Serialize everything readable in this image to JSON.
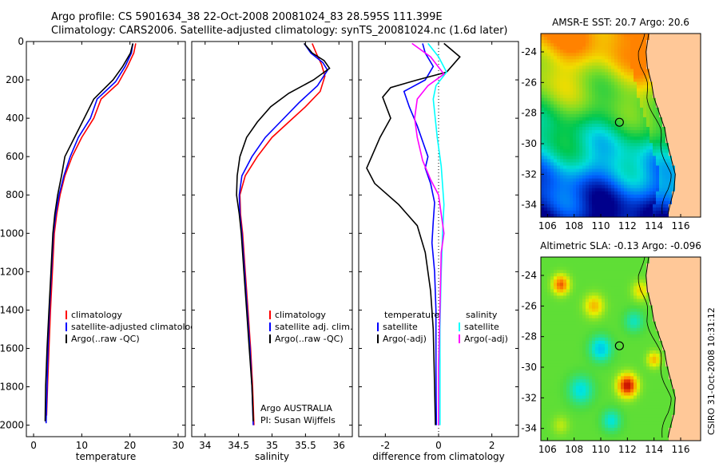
{
  "header": {
    "line1": "Argo profile: CS 5901634_38 22-Oct-2008 20081024_83 28.595S 111.399E",
    "line2": "Climatology: CARS2006. Satellite-adjusted climatology: synTS_20081024.nc (1.6d later)"
  },
  "credits": {
    "owner": "Argo AUSTRALIA",
    "pi": "PI: Susan Wijffels",
    "side": "CSIRO 31-Oct-2008 10:31:12"
  },
  "colors": {
    "clim": "#ff0000",
    "sat": "#0000ff",
    "argo": "#000000",
    "sal_clim": "#ff00ff",
    "sal_sat": "#00ffff",
    "land": "#ffc898"
  },
  "chart_data": [
    {
      "type": "line",
      "title": "",
      "xlabel": "temperature",
      "ylabel": "",
      "xlim": [
        -1.5,
        31.5
      ],
      "ylim": [
        2060,
        0
      ],
      "x_ticks": [
        0,
        10,
        20,
        30
      ],
      "y_ticks": [
        0,
        200,
        400,
        600,
        800,
        1000,
        1200,
        1400,
        1600,
        1800,
        2000
      ],
      "legend": [
        "climatology",
        "satellite-adjusted climatology",
        "Argo(..raw -QC)"
      ],
      "series": [
        {
          "name": "climatology",
          "color": "#ff0000",
          "points": [
            [
              21.2,
              10
            ],
            [
              20.8,
              60
            ],
            [
              19.5,
              130
            ],
            [
              17.5,
              220
            ],
            [
              14.0,
              300
            ],
            [
              12.5,
              400
            ],
            [
              10.0,
              500
            ],
            [
              8.0,
              600
            ],
            [
              6.5,
              700
            ],
            [
              5.5,
              800
            ],
            [
              4.8,
              900
            ],
            [
              4.3,
              1000
            ],
            [
              3.9,
              1200
            ],
            [
              3.5,
              1400
            ],
            [
              3.2,
              1600
            ],
            [
              2.9,
              1800
            ],
            [
              2.7,
              1950
            ]
          ]
        },
        {
          "name": "satellite-adjusted climatology",
          "color": "#0000ff",
          "points": [
            [
              20.6,
              10
            ],
            [
              20.3,
              60
            ],
            [
              19.0,
              130
            ],
            [
              17.0,
              210
            ],
            [
              13.2,
              300
            ],
            [
              11.8,
              400
            ],
            [
              9.3,
              500
            ],
            [
              7.6,
              600
            ],
            [
              6.3,
              700
            ],
            [
              5.3,
              800
            ],
            [
              4.6,
              900
            ],
            [
              4.1,
              1000
            ],
            [
              3.7,
              1200
            ],
            [
              3.3,
              1400
            ],
            [
              3.0,
              1600
            ],
            [
              2.8,
              1800
            ],
            [
              2.6,
              1990
            ]
          ]
        },
        {
          "name": "Argo(..raw -QC)",
          "color": "#000000",
          "points": [
            [
              20.6,
              10
            ],
            [
              20.1,
              60
            ],
            [
              18.5,
              130
            ],
            [
              16.5,
              200
            ],
            [
              12.5,
              300
            ],
            [
              10.5,
              400
            ],
            [
              8.5,
              500
            ],
            [
              6.5,
              600
            ],
            [
              5.8,
              700
            ],
            [
              5.0,
              800
            ],
            [
              4.4,
              900
            ],
            [
              4.0,
              1000
            ],
            [
              3.6,
              1200
            ],
            [
              3.2,
              1400
            ],
            [
              2.8,
              1600
            ],
            [
              2.5,
              1800
            ],
            [
              2.4,
              1980
            ]
          ]
        }
      ]
    },
    {
      "type": "line",
      "title": "",
      "xlabel": "salinity",
      "ylabel": "",
      "xlim": [
        33.8,
        36.2
      ],
      "ylim": [
        2060,
        0
      ],
      "x_ticks": [
        34,
        34.5,
        35,
        35.5,
        36
      ],
      "x_tick_labels": [
        "34",
        "34.5",
        "35",
        "35.5",
        "36"
      ],
      "legend": [
        "climatology",
        "satellite adj. clim.",
        "Argo(..raw -QC)"
      ],
      "series": [
        {
          "name": "climatology",
          "color": "#ff0000",
          "points": [
            [
              35.6,
              10
            ],
            [
              35.66,
              60
            ],
            [
              35.74,
              120
            ],
            [
              35.79,
              180
            ],
            [
              35.72,
              260
            ],
            [
              35.5,
              340
            ],
            [
              35.25,
              420
            ],
            [
              35.0,
              500
            ],
            [
              34.78,
              600
            ],
            [
              34.6,
              700
            ],
            [
              34.52,
              800
            ],
            [
              34.53,
              900
            ],
            [
              34.56,
              1000
            ],
            [
              34.6,
              1200
            ],
            [
              34.64,
              1400
            ],
            [
              34.68,
              1600
            ],
            [
              34.71,
              1800
            ],
            [
              34.73,
              2000
            ]
          ]
        },
        {
          "name": "satellite adj. clim.",
          "color": "#0000ff",
          "points": [
            [
              35.48,
              10
            ],
            [
              35.58,
              60
            ],
            [
              35.76,
              110
            ],
            [
              35.83,
              150
            ],
            [
              35.68,
              230
            ],
            [
              35.4,
              320
            ],
            [
              35.15,
              410
            ],
            [
              34.9,
              500
            ],
            [
              34.7,
              600
            ],
            [
              34.55,
              700
            ],
            [
              34.51,
              800
            ],
            [
              34.52,
              900
            ],
            [
              34.55,
              1000
            ],
            [
              34.59,
              1200
            ],
            [
              34.63,
              1400
            ],
            [
              34.67,
              1600
            ],
            [
              34.7,
              1800
            ],
            [
              34.72,
              2000
            ]
          ]
        },
        {
          "name": "Argo(..raw -QC)",
          "color": "#000000",
          "points": [
            [
              35.48,
              10
            ],
            [
              35.6,
              60
            ],
            [
              35.78,
              100
            ],
            [
              35.86,
              140
            ],
            [
              35.62,
              200
            ],
            [
              35.25,
              270
            ],
            [
              34.98,
              340
            ],
            [
              34.78,
              420
            ],
            [
              34.62,
              500
            ],
            [
              34.52,
              600
            ],
            [
              34.48,
              700
            ],
            [
              34.47,
              800
            ],
            [
              34.51,
              900
            ],
            [
              34.54,
              1000
            ],
            [
              34.58,
              1200
            ],
            [
              34.62,
              1400
            ],
            [
              34.66,
              1600
            ],
            [
              34.7,
              1800
            ],
            [
              34.72,
              1980
            ]
          ]
        }
      ]
    },
    {
      "type": "line",
      "title": "",
      "xlabel": "difference from climatology",
      "ylabel": "",
      "xlim": [
        -3.0,
        3.0
      ],
      "ylim": [
        2060,
        0
      ],
      "x_ticks": [
        -2,
        0,
        2
      ],
      "legend_left_title": "temperature",
      "legend_right_title": "salinity",
      "legend": [
        "satellite",
        "Argo(-adj)",
        "satellite",
        "Argo(-adj)"
      ],
      "series": [
        {
          "name": "temperature satellite",
          "color": "#0000ff",
          "points": [
            [
              -0.6,
              10
            ],
            [
              -0.5,
              60
            ],
            [
              -0.2,
              130
            ],
            [
              -0.5,
              200
            ],
            [
              -1.3,
              260
            ],
            [
              -1.1,
              340
            ],
            [
              -0.8,
              440
            ],
            [
              -0.6,
              520
            ],
            [
              -0.4,
              600
            ],
            [
              -0.5,
              660
            ],
            [
              -0.3,
              740
            ],
            [
              -0.15,
              840
            ],
            [
              -0.2,
              940
            ],
            [
              -0.25,
              1050
            ],
            [
              -0.15,
              1200
            ],
            [
              -0.1,
              1400
            ],
            [
              -0.1,
              1700
            ],
            [
              -0.08,
              2000
            ]
          ]
        },
        {
          "name": "temperature Argo(-adj)",
          "color": "#000000",
          "points": [
            [
              0.2,
              10
            ],
            [
              0.8,
              80
            ],
            [
              0.3,
              160
            ],
            [
              -0.8,
              200
            ],
            [
              -1.8,
              240
            ],
            [
              -2.1,
              290
            ],
            [
              -1.8,
              400
            ],
            [
              -2.2,
              500
            ],
            [
              -2.7,
              660
            ],
            [
              -2.4,
              740
            ],
            [
              -1.5,
              850
            ],
            [
              -0.8,
              960
            ],
            [
              -0.5,
              1100
            ],
            [
              -0.3,
              1300
            ],
            [
              -0.2,
              1500
            ],
            [
              -0.15,
              1800
            ],
            [
              -0.12,
              2000
            ]
          ]
        },
        {
          "name": "salinity satellite",
          "color": "#00ffff",
          "points": [
            [
              -0.4,
              10
            ],
            [
              0.0,
              80
            ],
            [
              0.3,
              160
            ],
            [
              -0.1,
              230
            ],
            [
              -0.2,
              300
            ],
            [
              -0.05,
              500
            ],
            [
              0.1,
              650
            ],
            [
              0.15,
              750
            ],
            [
              0.2,
              850
            ],
            [
              0.15,
              1000
            ],
            [
              0.1,
              1200
            ],
            [
              0.05,
              1500
            ],
            [
              0.05,
              1800
            ],
            [
              0.05,
              2000
            ]
          ]
        },
        {
          "name": "salinity Argo(-adj)",
          "color": "#ff00ff",
          "points": [
            [
              -1.0,
              10
            ],
            [
              -0.3,
              80
            ],
            [
              0.2,
              170
            ],
            [
              -0.4,
              230
            ],
            [
              -0.8,
              300
            ],
            [
              -0.9,
              400
            ],
            [
              -0.8,
              500
            ],
            [
              -0.6,
              620
            ],
            [
              -0.3,
              720
            ],
            [
              0.0,
              800
            ],
            [
              0.1,
              900
            ],
            [
              0.2,
              1000
            ],
            [
              0.1,
              1100
            ],
            [
              0.05,
              1400
            ],
            [
              0.0,
              1700
            ],
            [
              0.0,
              2000
            ]
          ]
        }
      ]
    },
    {
      "type": "heatmap",
      "title": "AMSR-E SST: 20.7 Argo: 20.6",
      "xlim": [
        105.5,
        117.5
      ],
      "ylim": [
        -34.8,
        -22.8
      ],
      "x_ticks": [
        106,
        108,
        110,
        112,
        114,
        116
      ],
      "y_ticks": [
        -24,
        -26,
        -28,
        -30,
        -32,
        -34
      ],
      "float_position": [
        111.4,
        -28.6
      ],
      "colormap": [
        "#00008c",
        "#0064ff",
        "#00dcdc",
        "#00c850",
        "#78dc28",
        "#f0dc00",
        "#ff8200"
      ]
    },
    {
      "type": "heatmap",
      "title": "Altimetric SLA: -0.13 Argo: -0.096",
      "xlim": [
        105.5,
        117.5
      ],
      "ylim": [
        -34.8,
        -22.8
      ],
      "x_ticks": [
        106,
        108,
        110,
        112,
        114,
        116
      ],
      "y_ticks": [
        -24,
        -26,
        -28,
        -30,
        -32,
        -34
      ],
      "float_position": [
        111.4,
        -28.6
      ],
      "colormap": [
        "#00a0ff",
        "#00e6dc",
        "#50dc3c",
        "#e6f000",
        "#ff9600",
        "#dc2000",
        "#a00000"
      ]
    }
  ]
}
